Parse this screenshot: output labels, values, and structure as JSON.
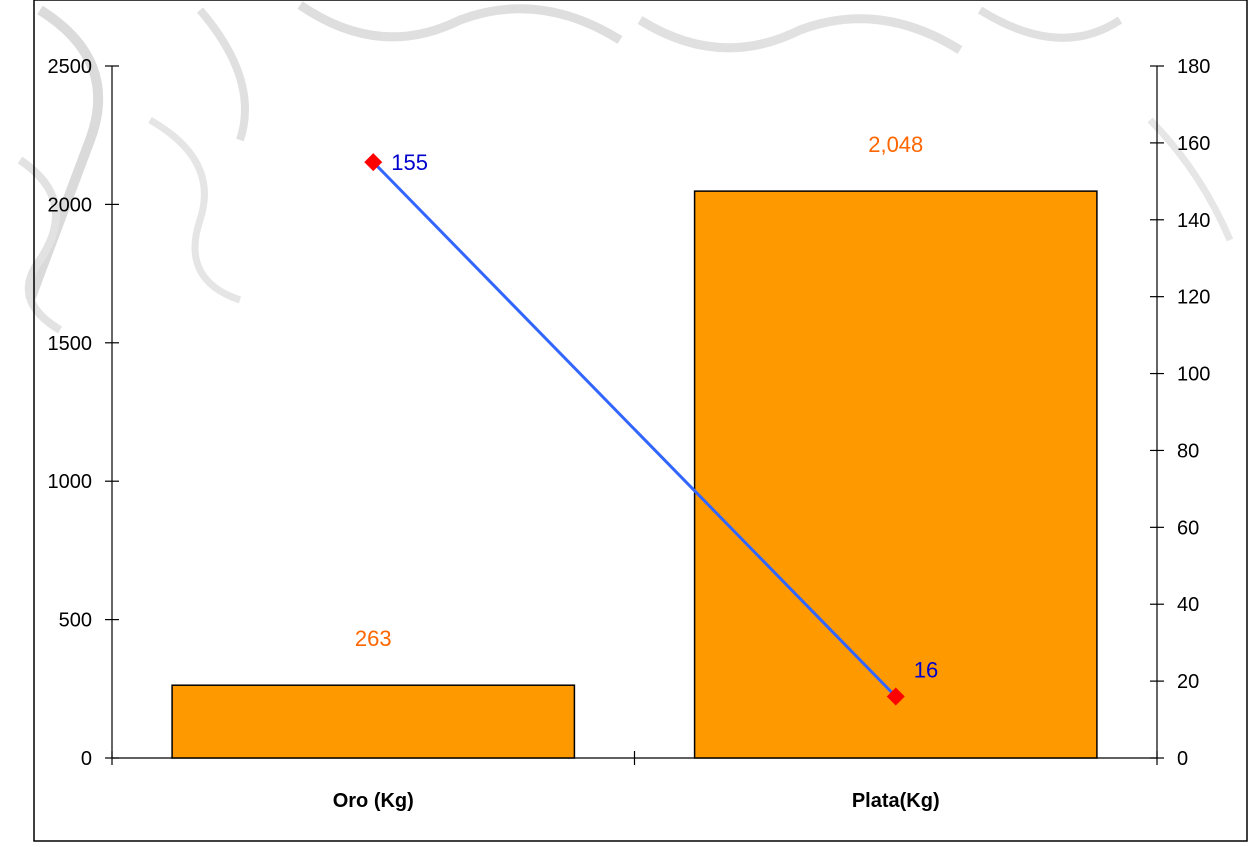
{
  "chart_data": {
    "type": "bar",
    "categories": [
      "Oro (Kg)",
      "Plata(Kg)"
    ],
    "series": [
      {
        "type": "bar",
        "axis": "left",
        "values": [
          263,
          2048
        ],
        "data_labels": [
          "263",
          "2,048"
        ],
        "color": "#FF9900",
        "label_color": "#FF6600"
      },
      {
        "type": "line",
        "axis": "right",
        "values": [
          155,
          16
        ],
        "data_labels": [
          "155",
          "16"
        ],
        "line_color": "#3366FF",
        "marker_color": "#FF0000",
        "marker": "diamond",
        "label_color": "#0000CC"
      }
    ],
    "y_left": {
      "min": 0,
      "max": 2500,
      "ticks": [
        0,
        500,
        1000,
        1500,
        2000,
        2500
      ],
      "tick_labels": [
        "0",
        "500",
        "1000",
        "1500",
        "2000",
        "2500"
      ]
    },
    "y_right": {
      "min": 0,
      "max": 180,
      "ticks": [
        0,
        20,
        40,
        60,
        80,
        100,
        120,
        140,
        160,
        180
      ],
      "tick_labels": [
        "0",
        "20",
        "40",
        "60",
        "80",
        "100",
        "120",
        "140",
        "160",
        "180"
      ]
    },
    "grid": false,
    "legend": "none",
    "title": "",
    "watermark": "faded decorative seal in background"
  }
}
